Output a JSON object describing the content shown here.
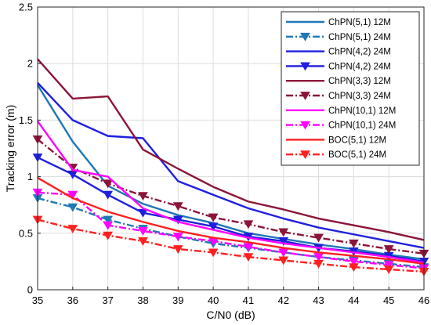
{
  "chart_data": {
    "type": "line",
    "title": "",
    "xlabel": "C/N0 (dB)",
    "ylabel": "Tracking error (m)",
    "xlim": [
      35,
      46
    ],
    "ylim": [
      0,
      2.5
    ],
    "x": [
      35,
      36,
      37,
      38,
      39,
      40,
      41,
      42,
      43,
      44,
      45,
      46
    ],
    "xticks": [
      "35",
      "36",
      "37",
      "38",
      "39",
      "40",
      "41",
      "42",
      "43",
      "44",
      "45",
      "46"
    ],
    "yticks": [
      "0",
      "0.5",
      "1",
      "1.5",
      "2",
      "2.5"
    ],
    "grid": true,
    "legend_position": "top-right",
    "series": [
      {
        "name": "ChPN(5,1) 12M",
        "color": "#1f77b4",
        "dash": "solid",
        "marker": "none",
        "values": [
          1.81,
          1.31,
          0.92,
          0.76,
          0.66,
          0.59,
          0.5,
          0.45,
          0.4,
          0.36,
          0.31,
          0.27
        ]
      },
      {
        "name": "ChPN(5,1) 24M",
        "color": "#1f77b4",
        "dash": "dashdot",
        "marker": "triangle-down",
        "values": [
          0.81,
          0.73,
          0.62,
          0.54,
          0.47,
          0.41,
          0.37,
          0.33,
          0.29,
          0.26,
          0.23,
          0.2
        ]
      },
      {
        "name": "ChPN(4,2) 24M",
        "color": "#1f1fe0",
        "dash": "solid",
        "marker": "none",
        "values": [
          1.83,
          1.5,
          1.36,
          1.34,
          0.96,
          0.84,
          0.72,
          0.63,
          0.55,
          0.49,
          0.43,
          0.37
        ]
      },
      {
        "name": "ChPN(4,2) 24M",
        "color": "#1f1fe0",
        "dash": "solid",
        "marker": "triangle-down",
        "values": [
          1.17,
          1.02,
          0.84,
          0.68,
          0.62,
          0.56,
          0.47,
          0.43,
          0.37,
          0.34,
          0.3,
          0.25
        ]
      },
      {
        "name": "ChPN(3,3) 12M",
        "color": "#8b1538",
        "dash": "solid",
        "marker": "none",
        "values": [
          2.04,
          1.69,
          1.71,
          1.24,
          1.07,
          0.91,
          0.78,
          0.71,
          0.63,
          0.57,
          0.51,
          0.44
        ]
      },
      {
        "name": "ChPN(3,3) 24M",
        "color": "#8b1538",
        "dash": "dashdot",
        "marker": "triangle-down",
        "values": [
          1.33,
          1.08,
          0.94,
          0.83,
          0.74,
          0.64,
          0.58,
          0.51,
          0.46,
          0.41,
          0.36,
          0.32
        ]
      },
      {
        "name": "ChPN(10,1) 12M",
        "color": "#ff00ff",
        "dash": "solid",
        "marker": "none",
        "values": [
          1.49,
          1.06,
          1.0,
          0.72,
          0.6,
          0.53,
          0.46,
          0.41,
          0.37,
          0.33,
          0.29,
          0.24
        ]
      },
      {
        "name": "ChPN(10,1) 24M",
        "color": "#ff00ff",
        "dash": "dashdot",
        "marker": "triangle-down",
        "values": [
          0.86,
          0.84,
          0.57,
          0.52,
          0.47,
          0.43,
          0.38,
          0.33,
          0.29,
          0.25,
          0.22,
          0.19
        ]
      },
      {
        "name": "BOC(5,1) 12M",
        "color": "#ff2020",
        "dash": "solid",
        "marker": "none",
        "values": [
          0.99,
          0.81,
          0.69,
          0.6,
          0.52,
          0.46,
          0.42,
          0.37,
          0.33,
          0.3,
          0.27,
          0.23
        ]
      },
      {
        "name": "BOC(5,1) 24M",
        "color": "#ff2020",
        "dash": "dashdot",
        "marker": "triangle-down",
        "values": [
          0.62,
          0.54,
          0.48,
          0.43,
          0.36,
          0.33,
          0.29,
          0.26,
          0.23,
          0.2,
          0.18,
          0.16
        ]
      }
    ]
  }
}
